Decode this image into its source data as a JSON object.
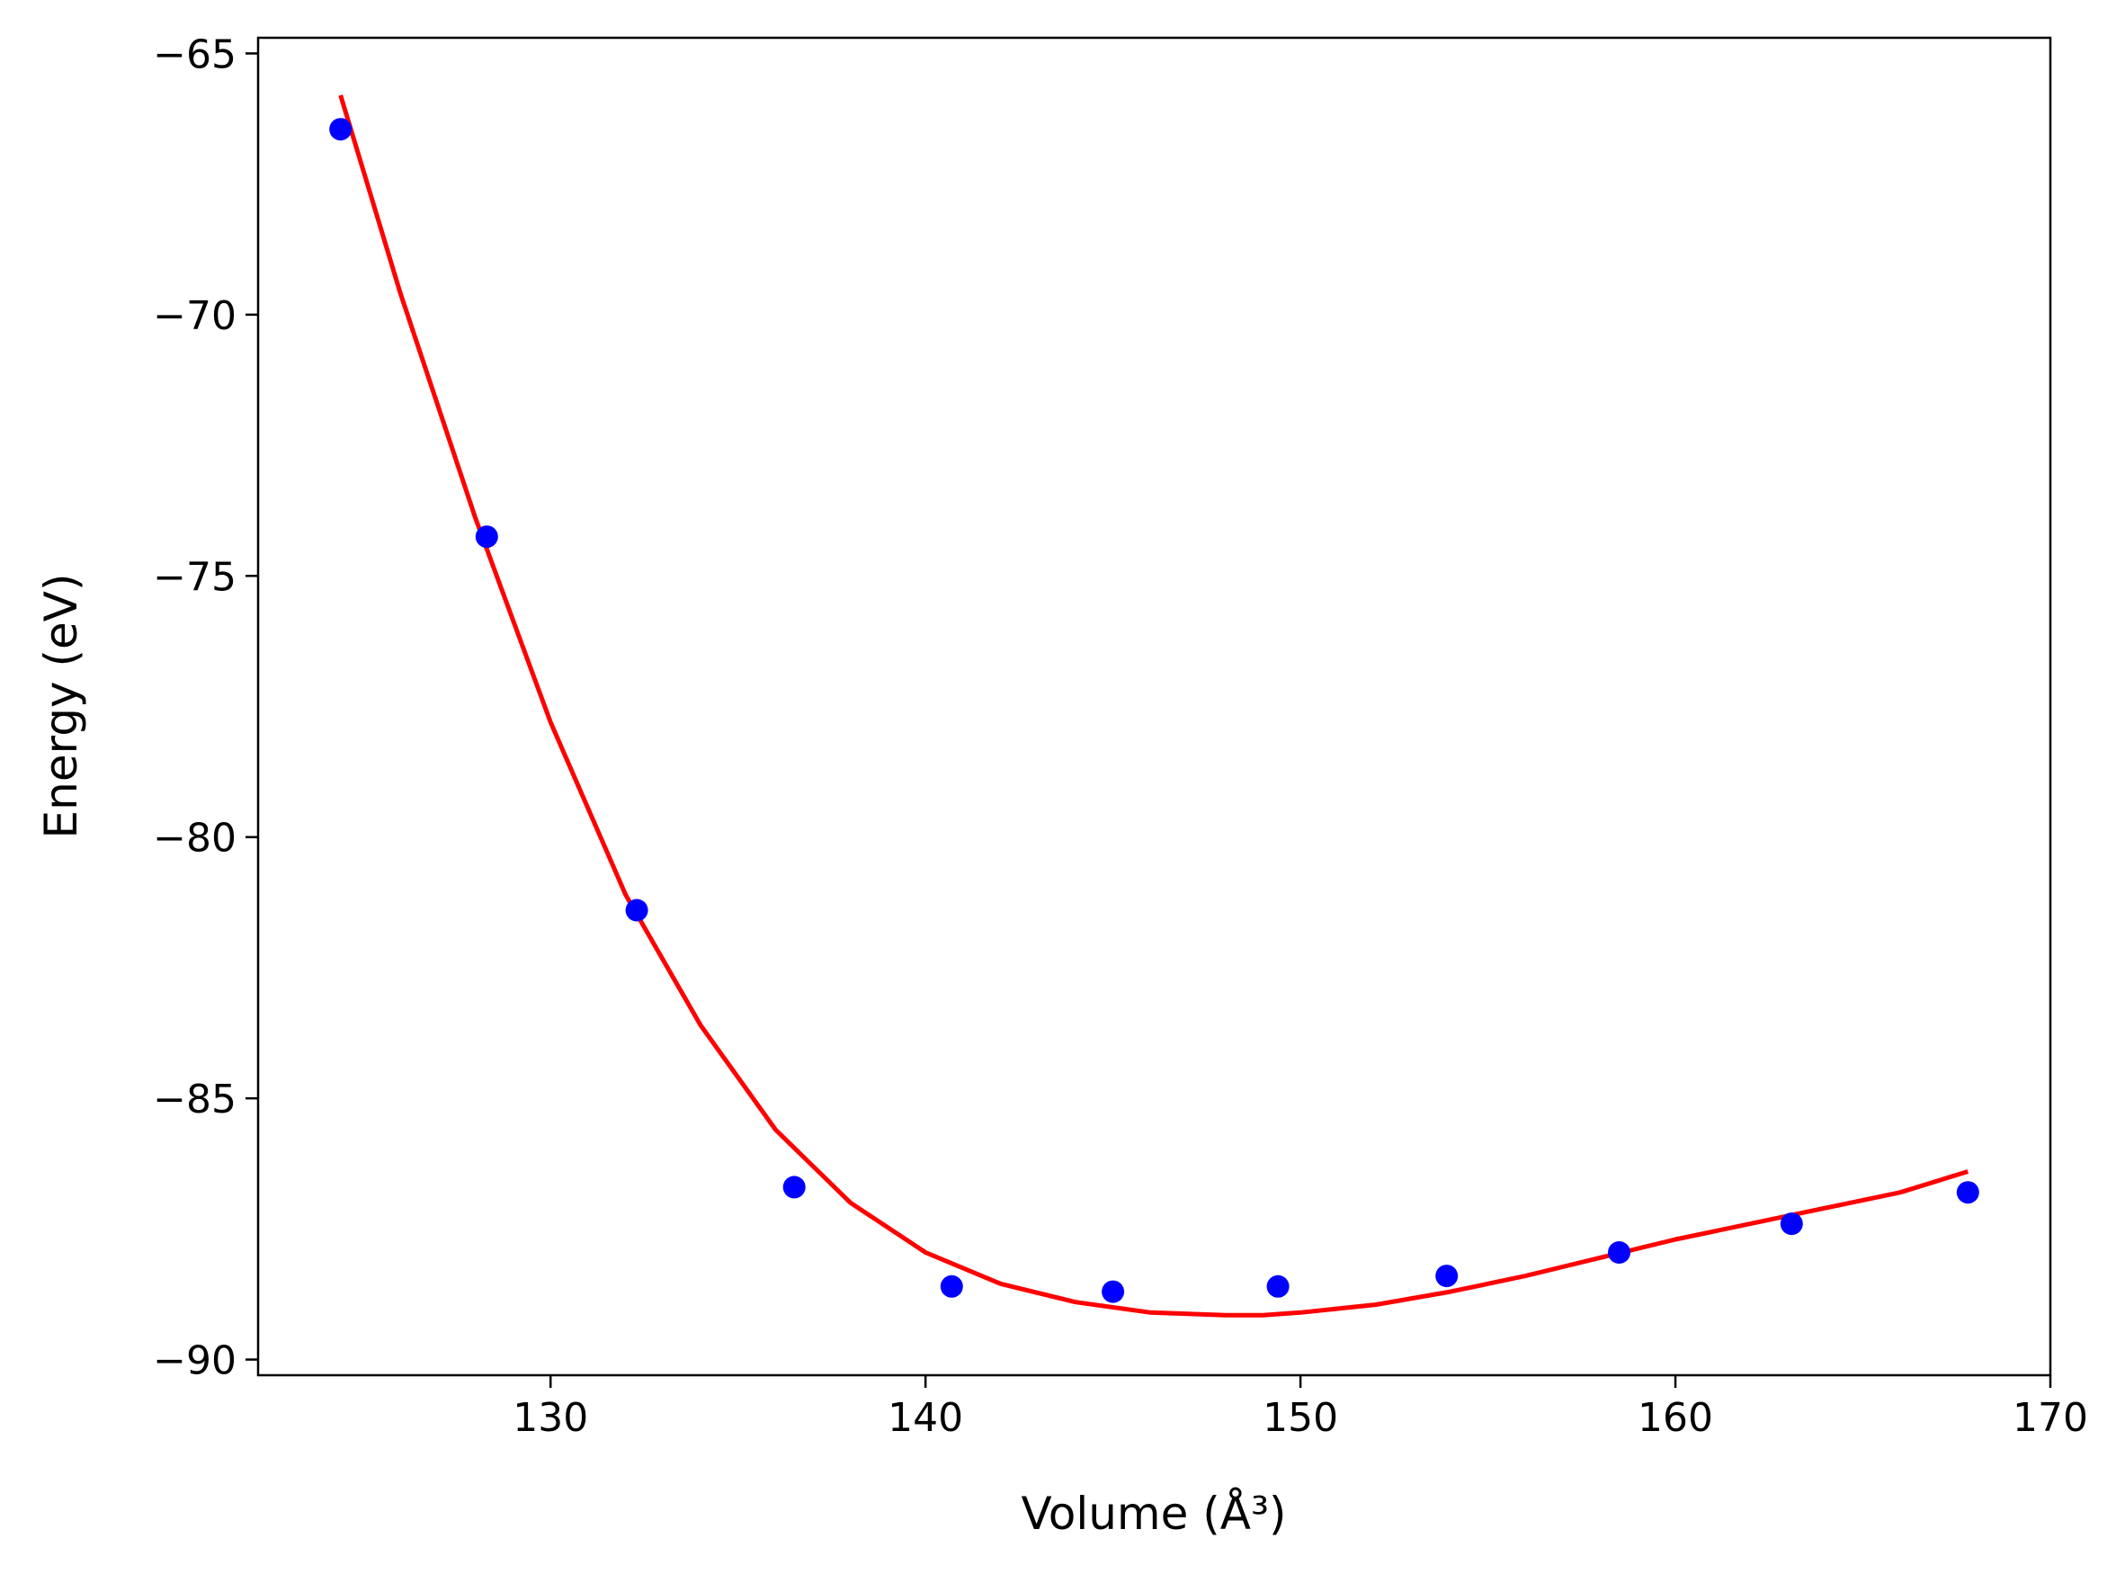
{
  "chart_data": {
    "type": "scatter",
    "xlabel": "Volume (Å³)",
    "ylabel": "Energy (eV)",
    "xlim": [
      122.2,
      170
    ],
    "ylim": [
      -90.3,
      -64.7
    ],
    "x_ticks": [
      {
        "value": 130,
        "label": "130"
      },
      {
        "value": 140,
        "label": "140"
      },
      {
        "value": 150,
        "label": "150"
      },
      {
        "value": 160,
        "label": "160"
      },
      {
        "value": 170,
        "label": "170"
      }
    ],
    "y_ticks": [
      {
        "value": -65,
        "label": "−65"
      },
      {
        "value": -70,
        "label": "−70"
      },
      {
        "value": -75,
        "label": "−75"
      },
      {
        "value": -80,
        "label": "−80"
      },
      {
        "value": -85,
        "label": "−85"
      },
      {
        "value": -90,
        "label": "−90"
      }
    ],
    "grid": false,
    "series": [
      {
        "kind": "points",
        "color": "#0000ff",
        "x": [
          124.4,
          128.3,
          132.3,
          136.5,
          140.7,
          145.0,
          149.4,
          153.9,
          158.5,
          163.1,
          167.8
        ],
        "y": [
          -66.45,
          -74.25,
          -81.4,
          -86.7,
          -88.6,
          -88.7,
          -88.6,
          -88.4,
          -87.95,
          -87.4,
          -86.8
        ]
      },
      {
        "kind": "line",
        "color": "#ff0000",
        "x": [
          124.4,
          126,
          128,
          130,
          132,
          134,
          136,
          138,
          140,
          142,
          144,
          146,
          148,
          149,
          150,
          152,
          154,
          156,
          158,
          160,
          162,
          164,
          166,
          167.8
        ],
        "y": [
          -65.8,
          -69.6,
          -73.9,
          -77.8,
          -81.1,
          -83.6,
          -85.6,
          -87.0,
          -87.95,
          -88.55,
          -88.9,
          -89.1,
          -89.15,
          -89.15,
          -89.1,
          -88.95,
          -88.7,
          -88.4,
          -88.05,
          -87.7,
          -87.4,
          -87.1,
          -86.8,
          -86.4
        ]
      }
    ]
  }
}
